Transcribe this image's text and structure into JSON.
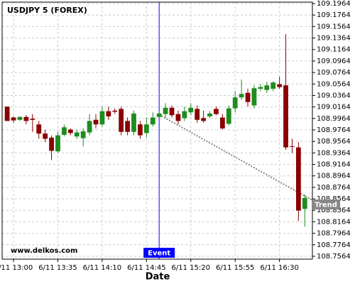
{
  "chart_data": {
    "type": "candlestick",
    "title": "USDJPY 5 (FOREX)",
    "x_label": "Date",
    "watermark": "www.delkos.com",
    "categories": [
      null,
      "6/11 13:00",
      null,
      null,
      null,
      null,
      null,
      null,
      "6/11 13:35",
      null,
      null,
      null,
      null,
      null,
      null,
      "6/11 14:10",
      null,
      null,
      null,
      null,
      null,
      null,
      "6/11 14:45",
      null,
      null,
      null,
      null,
      null,
      null,
      "6/11 15:20",
      null,
      null,
      null,
      null,
      null,
      null,
      "6/11 15:55",
      null,
      null,
      null,
      null,
      null,
      null,
      "6/11 16:30",
      null,
      null,
      null,
      null
    ],
    "open": [
      109.017,
      108.998,
      108.994,
      108.999,
      108.996,
      108.986,
      108.97,
      108.963,
      108.939,
      108.968,
      108.977,
      108.965,
      108.962,
      108.972,
      108.994,
      108.986,
      109.009,
      109.01,
      109.013,
      108.992,
      108.973,
      108.986,
      108.971,
      108.986,
      108.999,
      109.004,
      109.015,
      109.004,
      108.997,
      109.007,
      109.013,
      108.997,
      109.0,
      109.013,
      108.998,
      108.987,
      109.014,
      109.033,
      109.041,
      109.019,
      109.048,
      109.046,
      109.048,
      109.056,
      109.054,
      108.948,
      108.946,
      108.839
    ],
    "high": [
      109.017,
      109.0,
      109.0,
      109.002,
      109.004,
      108.992,
      108.977,
      108.967,
      108.973,
      108.986,
      108.979,
      108.977,
      108.979,
      109.004,
      109.004,
      109.017,
      109.017,
      109.014,
      109.017,
      108.998,
      109.01,
      108.992,
      108.998,
      109.007,
      109.009,
      109.023,
      109.019,
      109.01,
      109.017,
      109.023,
      109.019,
      109.01,
      109.009,
      109.017,
      109.004,
      109.019,
      109.044,
      109.064,
      109.048,
      109.054,
      109.056,
      109.06,
      109.061,
      109.069,
      109.143,
      108.961,
      108.955,
      108.864
    ],
    "low": [
      108.992,
      108.989,
      108.992,
      108.986,
      108.973,
      108.961,
      108.955,
      108.924,
      108.936,
      108.965,
      108.967,
      108.961,
      108.948,
      108.967,
      108.979,
      108.982,
      108.994,
      109.004,
      108.967,
      108.967,
      108.967,
      108.961,
      108.963,
      108.982,
      108.997,
      108.998,
      108.998,
      108.986,
      108.992,
      109.002,
      108.989,
      108.989,
      108.997,
      109.002,
      108.977,
      108.984,
      109.007,
      109.029,
      109.017,
      109.014,
      109.044,
      109.041,
      109.044,
      109.048,
      108.942,
      108.936,
      108.818,
      108.808
    ],
    "close": [
      108.992,
      108.993,
      108.999,
      108.992,
      108.994,
      108.97,
      108.961,
      108.94,
      108.967,
      108.981,
      108.971,
      108.972,
      108.974,
      108.992,
      108.986,
      109.009,
      109.0,
      109.008,
      108.973,
      108.973,
      109.005,
      108.967,
      108.986,
      108.998,
      109.005,
      109.015,
      109.002,
      108.992,
      109.009,
      109.015,
      108.994,
      108.992,
      109.005,
      109.004,
      108.979,
      109.014,
      109.033,
      109.039,
      109.025,
      109.049,
      109.051,
      109.054,
      109.059,
      109.051,
      108.946,
      108.947,
      108.836,
      108.858
    ],
    "up_color": "#1e8c1e",
    "down_color": "#8b0000",
    "event": {
      "label": "Event",
      "index": 24,
      "color": "#0000ff"
    },
    "trend": {
      "label": "Trend",
      "values": [
        109.003,
        108.854
      ],
      "color": "#888888"
    },
    "ylim": [
      108.7514,
      109.1989
    ],
    "yticks": [
      108.7564,
      108.7764,
      108.7964,
      108.8164,
      108.8364,
      108.8564,
      108.8764,
      108.8964,
      108.9164,
      108.9364,
      108.9564,
      108.9764,
      108.9964,
      109.0164,
      109.0364,
      109.0564,
      109.0764,
      109.0964,
      109.1164,
      109.1364,
      109.1564,
      109.1764,
      109.1964
    ],
    "grid": true
  }
}
